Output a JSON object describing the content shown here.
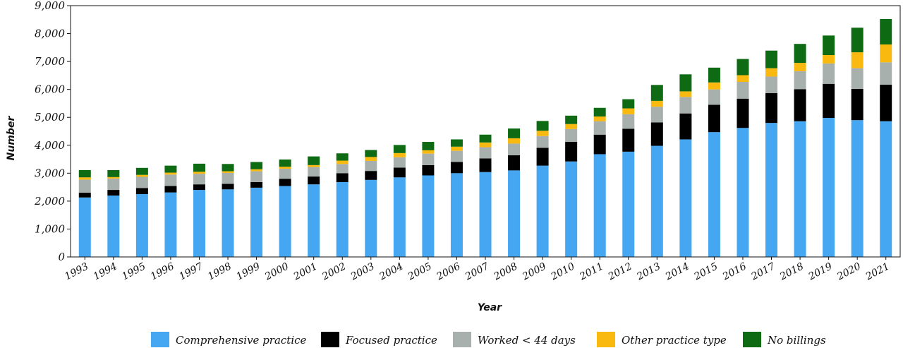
{
  "chart_data": {
    "type": "bar",
    "stacked": true,
    "title": "",
    "xlabel": "Year",
    "ylabel": "Number",
    "ylim": [
      0,
      9000
    ],
    "yticks": [
      "0",
      "1,000",
      "2,000",
      "3,000",
      "4,000",
      "5,000",
      "6,000",
      "7,000",
      "8,000",
      "9,000"
    ],
    "grid": false,
    "legend_position": "bottom",
    "categories": [
      "1993",
      "1994",
      "1995",
      "1996",
      "1997",
      "1998",
      "1999",
      "2000",
      "2001",
      "2002",
      "2003",
      "2004",
      "2005",
      "2006",
      "2007",
      "2008",
      "2009",
      "2010",
      "2011",
      "2012",
      "2013",
      "2014",
      "2015",
      "2016",
      "2017",
      "2018",
      "2019",
      "2020",
      "2021"
    ],
    "series": [
      {
        "name": "Comprehensive practice",
        "color": "#45a6f2",
        "values": [
          2130,
          2200,
          2250,
          2310,
          2400,
          2420,
          2480,
          2540,
          2600,
          2680,
          2760,
          2850,
          2920,
          3000,
          3040,
          3100,
          3270,
          3420,
          3680,
          3770,
          3980,
          4210,
          4470,
          4620,
          4800,
          4860,
          4980,
          4900,
          4860
        ]
      },
      {
        "name": "Focused practice",
        "color": "#000000",
        "values": [
          170,
          200,
          220,
          230,
          200,
          200,
          200,
          260,
          280,
          320,
          320,
          350,
          370,
          400,
          490,
          540,
          640,
          700,
          700,
          820,
          840,
          930,
          980,
          1050,
          1070,
          1150,
          1220,
          1120,
          1310
        ]
      },
      {
        "name": "Worked < 44 days",
        "color": "#a7b0ac",
        "values": [
          470,
          410,
          400,
          410,
          380,
          390,
          390,
          360,
          340,
          330,
          360,
          370,
          410,
          400,
          400,
          420,
          420,
          460,
          480,
          520,
          560,
          590,
          550,
          600,
          590,
          640,
          730,
          740,
          800
        ]
      },
      {
        "name": "Other practice type",
        "color": "#f9b90f",
        "values": [
          80,
          50,
          70,
          70,
          70,
          60,
          70,
          70,
          70,
          120,
          140,
          150,
          120,
          150,
          170,
          190,
          190,
          180,
          170,
          210,
          210,
          200,
          250,
          240,
          300,
          300,
          300,
          570,
          640
        ]
      },
      {
        "name": "No billings",
        "color": "#0e6b13",
        "values": [
          260,
          250,
          250,
          250,
          290,
          260,
          260,
          260,
          310,
          260,
          250,
          290,
          300,
          260,
          280,
          350,
          350,
          300,
          310,
          330,
          570,
          610,
          530,
          580,
          630,
          680,
          700,
          880,
          910
        ]
      }
    ]
  }
}
